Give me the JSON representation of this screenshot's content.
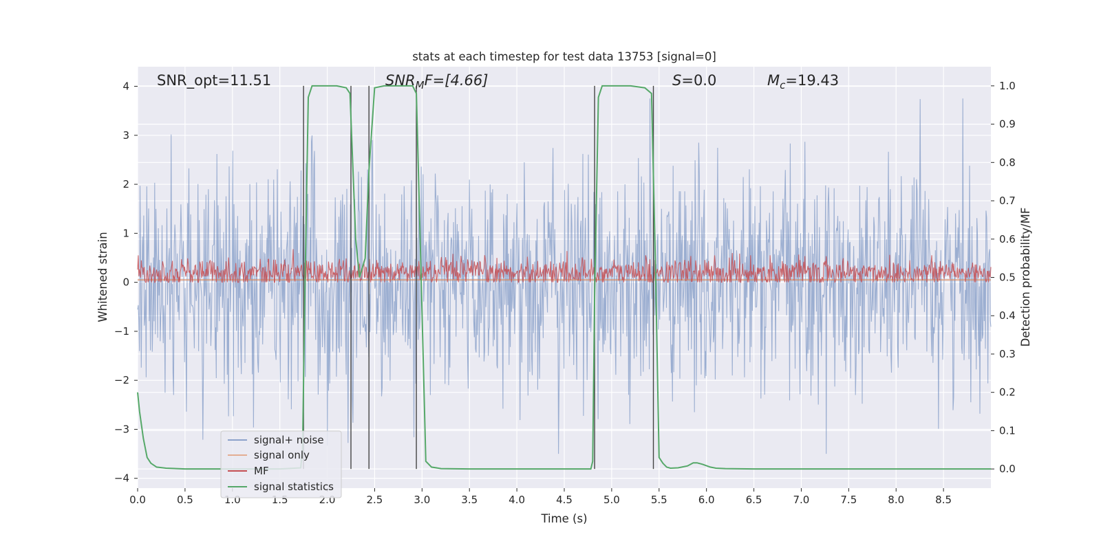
{
  "chart_data": {
    "type": "line",
    "title": "stats at each timestep for test data 13753 [signal=0]",
    "xlabel": "Time (s)",
    "ylabel": "Whitened strain",
    "y2label": "Detection probability/MF",
    "xlim": [
      0.0,
      9.0
    ],
    "ylim": [
      -4.2,
      4.4
    ],
    "y2lim": [
      -0.05,
      1.05
    ],
    "xticks": [
      "0.0",
      "0.5",
      "1.0",
      "1.5",
      "2.0",
      "2.5",
      "3.0",
      "3.5",
      "4.0",
      "4.5",
      "5.0",
      "5.5",
      "6.0",
      "6.5",
      "7.0",
      "7.5",
      "8.0",
      "8.5"
    ],
    "yticks": [
      "4",
      "3",
      "2",
      "1",
      "0",
      "−1",
      "−2",
      "−3",
      "−4"
    ],
    "y2ticks": [
      "1.0",
      "0.9",
      "0.8",
      "0.7",
      "0.6",
      "0.5",
      "0.4",
      "0.3",
      "0.2",
      "0.1",
      "0.0"
    ],
    "grid": true,
    "legend_position": "lower-left",
    "colors": {
      "background": "#eaeaf2",
      "grid": "#ffffff",
      "signal_noise": "#4c72b0",
      "signal_only": "#dd8452",
      "mf": "#c44e52",
      "signal_statistics": "#55a868",
      "vlines": "#444444"
    },
    "annotations": {
      "snr_opt": "SNR_opt=11.51",
      "snr_mf_prefix": "SNR",
      "snr_mf_sub": "M",
      "snr_mf_suffix": "F=[4.66]",
      "s_prefix": "S",
      "s_suffix": "=0.0",
      "mc_prefix": "M",
      "mc_sub": "c",
      "mc_suffix": "=19.43"
    },
    "series": [
      {
        "name": "signal+ noise",
        "kind": "noise",
        "amplitude_range": [
          -3.5,
          3.75
        ],
        "typical_std": 1.0
      },
      {
        "name": "signal only",
        "kind": "flat",
        "value": 0.05
      },
      {
        "name": "MF",
        "kind": "noise",
        "amplitude_range": [
          0.0,
          0.95
        ],
        "typical_center": 0.2
      },
      {
        "name": "signal statistics",
        "axis": "right",
        "x": [
          0.0,
          0.02,
          0.06,
          0.1,
          0.14,
          0.2,
          0.3,
          0.5,
          1.0,
          1.5,
          1.72,
          1.74,
          1.76,
          1.8,
          1.84,
          1.88,
          2.0,
          2.1,
          2.2,
          2.24,
          2.3,
          2.34,
          2.4,
          2.44,
          2.5,
          2.6,
          2.8,
          2.9,
          2.94,
          2.98,
          3.04,
          3.1,
          3.2,
          3.5,
          4.0,
          4.5,
          4.78,
          4.8,
          4.82,
          4.86,
          4.9,
          5.0,
          5.2,
          5.35,
          5.42,
          5.46,
          5.5,
          5.54,
          5.58,
          5.62,
          5.7,
          5.8,
          5.86,
          5.9,
          5.96,
          6.04,
          6.1,
          6.2,
          6.5,
          7.0,
          8.0,
          9.0
        ],
        "values": [
          0.2,
          0.15,
          0.08,
          0.03,
          0.015,
          0.005,
          0.002,
          0.0,
          0.0,
          0.0,
          0.003,
          0.05,
          0.4,
          0.97,
          1.0,
          1.0,
          1.0,
          1.0,
          0.995,
          0.98,
          0.6,
          0.5,
          0.55,
          0.78,
          0.995,
          1.0,
          1.0,
          1.0,
          0.98,
          0.6,
          0.02,
          0.005,
          0.001,
          0.0,
          0.0,
          0.0,
          0.0,
          0.02,
          0.45,
          0.97,
          1.0,
          1.0,
          1.0,
          0.995,
          0.98,
          0.55,
          0.03,
          0.015,
          0.005,
          0.002,
          0.003,
          0.008,
          0.016,
          0.016,
          0.012,
          0.005,
          0.002,
          0.001,
          0.0,
          0.0,
          0.0,
          0.0
        ]
      }
    ],
    "vlines": [
      1.75,
      2.25,
      2.44,
      2.94,
      4.82,
      5.44
    ]
  }
}
